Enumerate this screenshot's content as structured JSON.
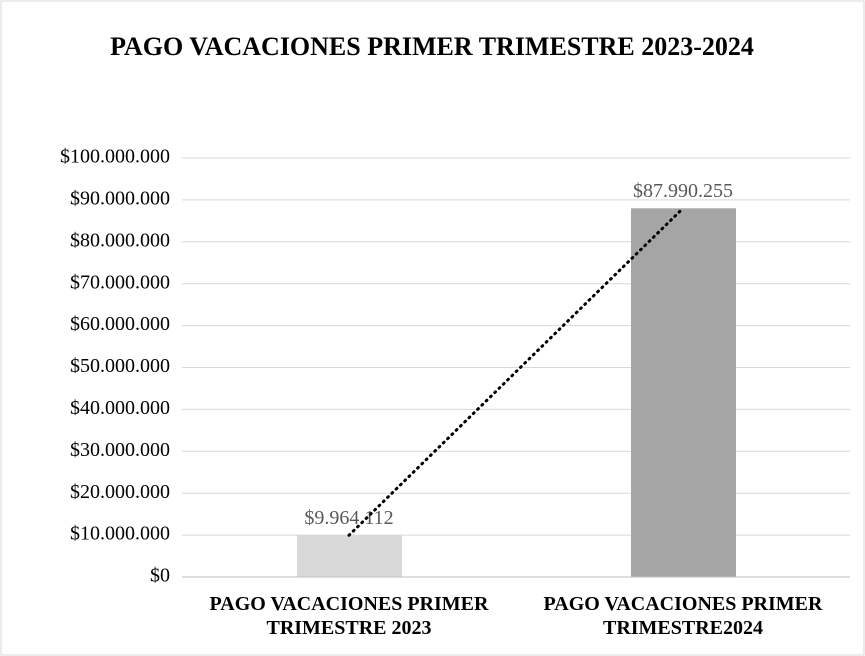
{
  "chart_data": {
    "type": "bar",
    "title": "PAGO VACACIONES PRIMER TRIMESTRE 2023-2024",
    "categories": [
      "PAGO VACACIONES PRIMER TRIMESTRE 2023",
      "PAGO VACACIONES PRIMER TRIMESTRE2024"
    ],
    "values": [
      9964112,
      87990255
    ],
    "value_labels": [
      "$9.964.112",
      "$87.990.255"
    ],
    "colors": [
      "#d9d9d9",
      "#a5a5a5"
    ],
    "ylim": [
      0,
      100000000
    ],
    "yticks": [
      {
        "value": 0,
        "label": "$0"
      },
      {
        "value": 10000000,
        "label": "$10.000.000"
      },
      {
        "value": 20000000,
        "label": "$20.000.000"
      },
      {
        "value": 30000000,
        "label": "$30.000.000"
      },
      {
        "value": 40000000,
        "label": "$40.000.000"
      },
      {
        "value": 50000000,
        "label": "$50.000.000"
      },
      {
        "value": 60000000,
        "label": "$60.000.000"
      },
      {
        "value": 70000000,
        "label": "$70.000.000"
      },
      {
        "value": 80000000,
        "label": "$80.000.000"
      },
      {
        "value": 90000000,
        "label": "$90.000.000"
      },
      {
        "value": 100000000,
        "label": "$100.000.000"
      }
    ],
    "grid": true,
    "trendline": true
  }
}
